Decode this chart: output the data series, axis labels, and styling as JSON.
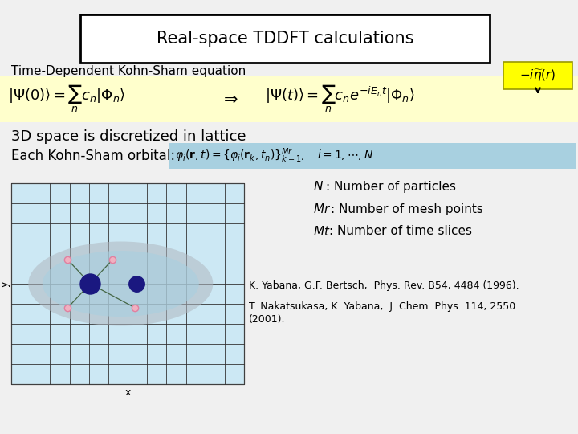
{
  "title": "Real-space TDDFT calculations",
  "subtitle": "Time-Dependent Kohn-Sham equation",
  "bg_color": "#f0f0f0",
  "title_box_color": "#ffffff",
  "title_box_edge": "#000000",
  "eq_bg_color": "#ffffcc",
  "yellow_box_color": "#ffff00",
  "eq_lhs": "$|\\Psi(0)\\rangle = \\sum_{n} c_n |\\Phi_n\\rangle$",
  "arrow": "$\\Rightarrow$",
  "eq_rhs": "$|\\Psi(t)\\rangle = \\sum_{n} c_n e^{-iE_n t} |\\Phi_n\\rangle$",
  "text3d": "3D space is discretized in lattice",
  "text_orbital": "Each Kohn-Sham orbital:",
  "N_label": "$N$",
  "N_desc": ": Number of particles",
  "Mr_label": "$Mr$",
  "Mr_desc": ": Number of mesh points",
  "Mt_label": "$Mt$",
  "Mt_desc": ": Number of time slices",
  "ref1": "K. Yabana, G.F. Bertsch,  Phys. Rev. B54, 4484 (1996).",
  "ref2": "T. Nakatsukasa, K. Yabana,  J. Chem. Phys. 114, 2550",
  "ref2b": "(2001).",
  "grid_bg": "#cce8f4",
  "grid_line_color": "#333333",
  "ellipse_gray": "#b0b8c0",
  "ellipse_blue": "#a8d0e0",
  "nucleus_color": "#1a1880",
  "pink_color": "#e080a0",
  "title_font": 15,
  "subtitle_font": 11,
  "eq_font": 13,
  "text3d_font": 13,
  "orbital_font": 12,
  "nmt_font": 11,
  "ref_font": 9
}
